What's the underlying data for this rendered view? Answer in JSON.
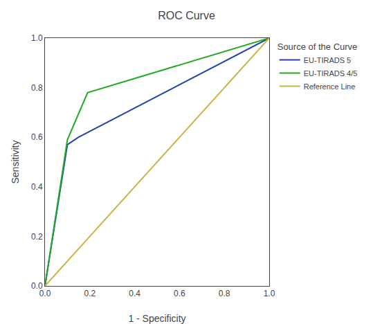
{
  "chart_data": {
    "type": "line",
    "title": "ROC Curve",
    "x_label": "1 - Specificity",
    "y_label": "Sensitivity",
    "legend_title": "Source of the Curve",
    "series": [
      {
        "name": "EU-TIRADS 5",
        "color": "#2244aa",
        "x": [
          0.0,
          0.1,
          0.15,
          1.0
        ],
        "values": [
          0.0,
          0.57,
          0.6,
          1.0
        ]
      },
      {
        "name": "EU-TIRADS 4/5",
        "color": "#22aa22",
        "x": [
          0.0,
          0.1,
          0.19,
          1.0
        ],
        "values": [
          0.0,
          0.59,
          0.78,
          1.0
        ]
      },
      {
        "name": "Reference Line",
        "color": "#c8b448",
        "x": [
          0.0,
          1.0
        ],
        "values": [
          0.0,
          1.0
        ]
      }
    ],
    "xlim": [
      0.0,
      1.0
    ],
    "ylim": [
      0.0,
      1.0
    ],
    "xticks": [
      {
        "value": 0,
        "label": "0.0"
      },
      0.2,
      0.4,
      0.6,
      0.8,
      {
        "value": 1,
        "label": "1.0"
      }
    ],
    "yticks": [
      {
        "value": 0,
        "label": "0.0"
      },
      0.2,
      0.4,
      0.6,
      0.8,
      {
        "value": 1,
        "label": "1.0"
      }
    ],
    "grid": false,
    "legend": "right"
  }
}
